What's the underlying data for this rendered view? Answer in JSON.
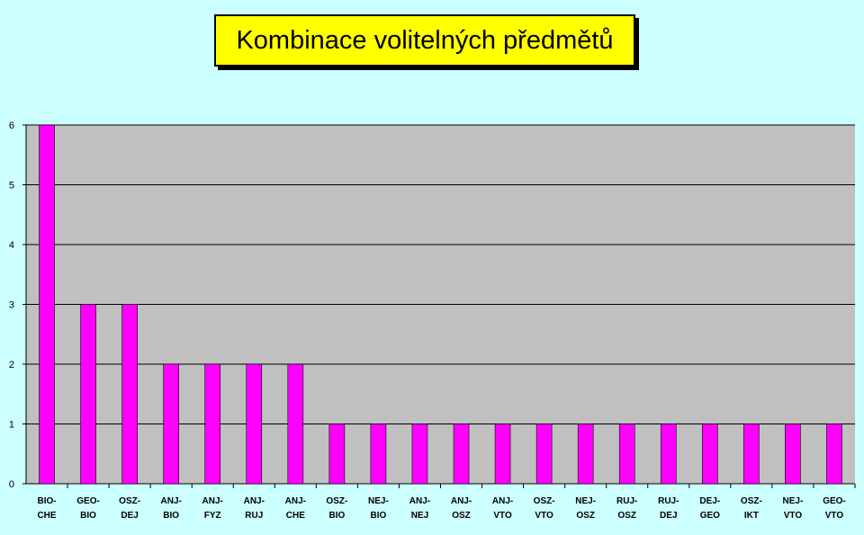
{
  "chart_data": {
    "type": "bar",
    "title": "Kombinace volitelných předmětů",
    "xlabel": "",
    "ylabel": "",
    "categories": [
      [
        "BIO-",
        "CHE"
      ],
      [
        "GEO-",
        "BIO"
      ],
      [
        "OSZ-",
        "DEJ"
      ],
      [
        "ANJ-",
        "BIO"
      ],
      [
        "ANJ-",
        "FYZ"
      ],
      [
        "ANJ-",
        "RUJ"
      ],
      [
        "ANJ-",
        "CHE"
      ],
      [
        "OSZ-",
        "BIO"
      ],
      [
        "NEJ-",
        "BIO"
      ],
      [
        "ANJ-",
        "NEJ"
      ],
      [
        "ANJ-",
        "OSZ"
      ],
      [
        "ANJ-",
        "VTO"
      ],
      [
        "OSZ-",
        "VTO"
      ],
      [
        "NEJ-",
        "OSZ"
      ],
      [
        "RUJ-",
        "OSZ"
      ],
      [
        "RUJ-",
        "DEJ"
      ],
      [
        "DEJ-",
        "GEO"
      ],
      [
        "OSZ-",
        "IKT"
      ],
      [
        "NEJ-",
        "VTO"
      ],
      [
        "GEO-",
        "VTO"
      ]
    ],
    "values": [
      6,
      3,
      3,
      2,
      2,
      2,
      2,
      1,
      1,
      1,
      1,
      1,
      1,
      1,
      1,
      1,
      1,
      1,
      1,
      1
    ],
    "ylim": [
      0,
      6
    ],
    "yticks": [
      0,
      1,
      2,
      3,
      4,
      5,
      6
    ],
    "grid": true,
    "legend": "none",
    "colors": {
      "bar": "#ff00ff",
      "bar_edge": "#000000",
      "plot_background": "#c0c0c0",
      "page_background": "#ccffff",
      "title_background": "#ffff00"
    }
  }
}
